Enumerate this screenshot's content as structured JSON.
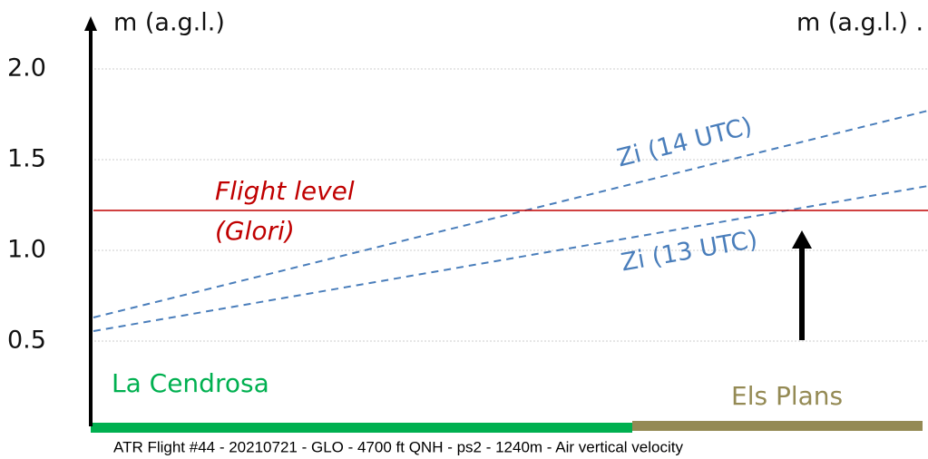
{
  "chart_data": {
    "type": "line",
    "y_label": "m (a.g.l.)",
    "y2_label": "m (a.g.l.) .",
    "x": [
      0,
      1
    ],
    "xlim": [
      0,
      1
    ],
    "series": [
      {
        "name": "Zi (14 UTC)",
        "color": "#4a7ebb",
        "dashed": true,
        "values": [
          0.63,
          1.77
        ]
      },
      {
        "name": "Zi (13 UTC)",
        "color": "#4a7ebb",
        "dashed": true,
        "values": [
          0.555,
          1.355
        ]
      },
      {
        "color": "#c00000",
        "dashed": false,
        "values": [
          1.22,
          1.22
        ]
      }
    ],
    "annotations": [
      "Flight level",
      "(Glori)",
      "La Cendrosa",
      "Els Plans"
    ],
    "caption": "ATR Flight #44  - 20210721 - GLO - 4700 ft QNH - ps2 - 1240m - Air vertical velocity",
    "ylim": [
      0,
      2.25
    ],
    "yticks": [
      {
        "value": 0.5,
        "label": "0.5"
      },
      {
        "value": 1.0,
        "label": "1.0"
      },
      {
        "value": 1.5,
        "label": "1.5"
      },
      {
        "value": 2.0,
        "label": "2.0"
      }
    ],
    "grid": true
  }
}
